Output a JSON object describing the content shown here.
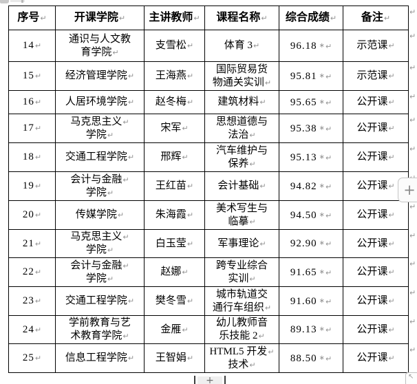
{
  "marks": {
    "pilcrow": "↵",
    "space_mark": "∗"
  },
  "table": {
    "headers": [
      "序号",
      "开课学院",
      "主讲教师",
      "课程名称",
      "综合成绩",
      "备注"
    ],
    "rows": [
      {
        "num": "14",
        "college": [
          "通识与人文教",
          "育学院¶"
        ],
        "teacher": "支雪松",
        "course": [
          "体育 3¶"
        ],
        "score": "96.18",
        "remark": "示范课"
      },
      {
        "num": "15",
        "college": [
          "经济管理学院¶"
        ],
        "teacher": "王海燕",
        "course": [
          "国际贸易货",
          "物通关实训¶"
        ],
        "score": "95.81",
        "remark": "示范课"
      },
      {
        "num": "16",
        "college": [
          "人居环境学院¶"
        ],
        "teacher": "赵冬梅",
        "course": [
          "建筑材料¶"
        ],
        "score": "95.65",
        "remark": "公开课"
      },
      {
        "num": "17",
        "college": [
          "马克思主义¶",
          "学院¶"
        ],
        "teacher": "宋军",
        "course": [
          "思想道德与",
          "法治¶"
        ],
        "score": "95.38",
        "remark": "公开课"
      },
      {
        "num": "18",
        "college": [
          "交通工程学院¶"
        ],
        "teacher": "邢辉",
        "course": [
          "汽车维护与",
          "保养¶"
        ],
        "score": "95.13",
        "remark": "公开课"
      },
      {
        "num": "19",
        "college": [
          "会计与金融¶",
          "学院¶"
        ],
        "teacher": "王红苗",
        "course": [
          "会计基础¶"
        ],
        "score": "94.82",
        "remark": "公开课"
      },
      {
        "num": "20",
        "college": [
          "传媒学院¶"
        ],
        "teacher": "朱海霞",
        "course": [
          "美术写生与",
          "临摹¶"
        ],
        "score": "94.50",
        "remark": "公开课"
      },
      {
        "num": "21",
        "college": [
          "马克思主义¶",
          "学院¶"
        ],
        "teacher": "白玉莹",
        "course": [
          "军事理论¶"
        ],
        "score": "92.90",
        "remark": "公开课"
      },
      {
        "num": "22",
        "college": [
          "会计与金融¶",
          "学院¶"
        ],
        "teacher": "赵娜",
        "course": [
          "跨专业综合",
          "实训¶"
        ],
        "score": "91.65",
        "remark": "公开课"
      },
      {
        "num": "23",
        "college": [
          "交通工程学院¶"
        ],
        "teacher": "樊冬雪",
        "course": [
          "城市轨道交",
          "通行车组织¶"
        ],
        "score": "91.60",
        "remark": "公开课"
      },
      {
        "num": "24",
        "college": [
          "学前教育与艺",
          "术教育学院¶"
        ],
        "teacher": "金雁",
        "course": [
          "幼儿教师音",
          "乐技能 2¶"
        ],
        "score": "89.13",
        "remark": "公开课"
      },
      {
        "num": "25",
        "college": [
          "信息工程学院¶"
        ],
        "teacher": "王智娟",
        "course": [
          "HTML5 开发¶",
          "技术¶"
        ],
        "score": "88.50",
        "remark": "公开课"
      }
    ]
  },
  "controls": {
    "right_add_label": "+",
    "bottom_add_label": "+",
    "corner_icon_glyph": "↖"
  },
  "colors": {
    "table_border": "#000000",
    "formatting_mark": "#949494",
    "button_border": "#c6c6c6",
    "button_bg": "#fbfbfb"
  }
}
